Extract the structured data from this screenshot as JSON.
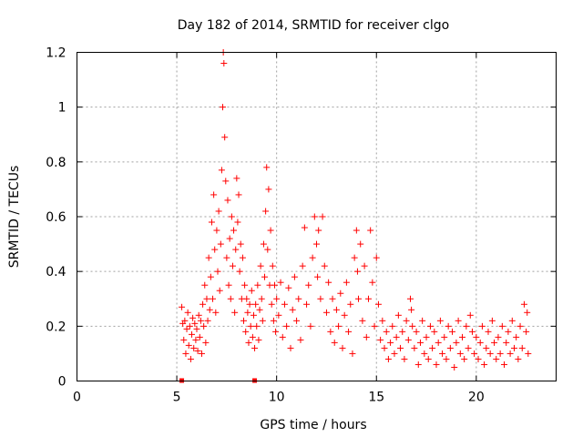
{
  "chart_data": {
    "type": "scatter",
    "title": "Day 182 of 2014, SRMTID for receiver clgo",
    "xlabel": "GPS time / hours",
    "ylabel": "SRMTID / TECUs",
    "xlim": [
      0,
      24
    ],
    "ylim": [
      0,
      1.2
    ],
    "x_ticks": [
      0,
      5,
      10,
      15,
      20
    ],
    "x_tick_labels": [
      "0",
      "5",
      "10",
      "15",
      "20"
    ],
    "y_ticks": [
      0,
      0.2,
      0.4,
      0.6,
      0.8,
      1.0,
      1.2
    ],
    "y_tick_labels": [
      "0",
      "0.2",
      "0.4",
      "0.6",
      "0.8",
      "1",
      "1.2"
    ],
    "grid": true,
    "marker": "+",
    "marker_color": "#ff0000",
    "series": [
      {
        "name": "SRMTID",
        "points": [
          [
            5.25,
            0.27
          ],
          [
            5.3,
            0.21
          ],
          [
            5.35,
            0.15
          ],
          [
            5.4,
            0.22
          ],
          [
            5.45,
            0.1
          ],
          [
            5.5,
            0.19
          ],
          [
            5.55,
            0.25
          ],
          [
            5.6,
            0.13
          ],
          [
            5.65,
            0.2
          ],
          [
            5.7,
            0.08
          ],
          [
            5.75,
            0.17
          ],
          [
            5.8,
            0.23
          ],
          [
            5.85,
            0.12
          ],
          [
            5.9,
            0.21
          ],
          [
            5.95,
            0.15
          ],
          [
            6.0,
            0.19
          ],
          [
            6.05,
            0.11
          ],
          [
            6.1,
            0.24
          ],
          [
            6.15,
            0.16
          ],
          [
            6.2,
            0.22
          ],
          [
            6.25,
            0.1
          ],
          [
            6.3,
            0.28
          ],
          [
            6.35,
            0.2
          ],
          [
            6.4,
            0.35
          ],
          [
            6.45,
            0.14
          ],
          [
            6.5,
            0.3
          ],
          [
            6.55,
            0.22
          ],
          [
            6.6,
            0.45
          ],
          [
            6.65,
            0.26
          ],
          [
            6.7,
            0.38
          ],
          [
            6.75,
            0.58
          ],
          [
            6.8,
            0.3
          ],
          [
            6.85,
            0.68
          ],
          [
            6.9,
            0.48
          ],
          [
            6.95,
            0.25
          ],
          [
            7.0,
            0.55
          ],
          [
            7.05,
            0.4
          ],
          [
            7.1,
            0.62
          ],
          [
            7.15,
            0.33
          ],
          [
            7.2,
            0.5
          ],
          [
            7.25,
            0.77
          ],
          [
            7.3,
            1.0
          ],
          [
            7.33,
            1.2
          ],
          [
            7.36,
            1.16
          ],
          [
            7.4,
            0.89
          ],
          [
            7.45,
            0.73
          ],
          [
            7.5,
            0.45
          ],
          [
            7.55,
            0.66
          ],
          [
            7.6,
            0.35
          ],
          [
            7.65,
            0.52
          ],
          [
            7.7,
            0.3
          ],
          [
            7.75,
            0.6
          ],
          [
            7.8,
            0.42
          ],
          [
            7.85,
            0.55
          ],
          [
            7.9,
            0.25
          ],
          [
            7.95,
            0.48
          ],
          [
            8.0,
            0.74
          ],
          [
            8.05,
            0.58
          ],
          [
            8.1,
            0.68
          ],
          [
            8.15,
            0.4
          ],
          [
            8.2,
            0.5
          ],
          [
            8.25,
            0.3
          ],
          [
            8.3,
            0.45
          ],
          [
            8.35,
            0.22
          ],
          [
            8.4,
            0.35
          ],
          [
            8.45,
            0.18
          ],
          [
            8.5,
            0.3
          ],
          [
            8.55,
            0.25
          ],
          [
            8.6,
            0.14
          ],
          [
            8.65,
            0.28
          ],
          [
            8.7,
            0.2
          ],
          [
            8.75,
            0.33
          ],
          [
            8.8,
            0.16
          ],
          [
            8.85,
            0.24
          ],
          [
            8.9,
            0.12
          ],
          [
            8.95,
            0.28
          ],
          [
            9.0,
            0.2
          ],
          [
            9.05,
            0.35
          ],
          [
            9.1,
            0.15
          ],
          [
            9.15,
            0.26
          ],
          [
            9.2,
            0.42
          ],
          [
            9.25,
            0.3
          ],
          [
            9.3,
            0.22
          ],
          [
            9.35,
            0.5
          ],
          [
            9.4,
            0.38
          ],
          [
            9.45,
            0.62
          ],
          [
            9.5,
            0.78
          ],
          [
            9.55,
            0.48
          ],
          [
            9.6,
            0.7
          ],
          [
            9.65,
            0.35
          ],
          [
            9.7,
            0.55
          ],
          [
            9.75,
            0.28
          ],
          [
            9.8,
            0.42
          ],
          [
            9.85,
            0.22
          ],
          [
            9.9,
            0.35
          ],
          [
            9.95,
            0.18
          ],
          [
            10.0,
            0.3
          ],
          [
            10.1,
            0.24
          ],
          [
            10.2,
            0.36
          ],
          [
            10.3,
            0.16
          ],
          [
            10.4,
            0.28
          ],
          [
            10.5,
            0.2
          ],
          [
            10.6,
            0.34
          ],
          [
            10.7,
            0.12
          ],
          [
            10.8,
            0.26
          ],
          [
            10.9,
            0.38
          ],
          [
            11.0,
            0.22
          ],
          [
            11.1,
            0.3
          ],
          [
            11.2,
            0.15
          ],
          [
            11.3,
            0.42
          ],
          [
            11.4,
            0.56
          ],
          [
            11.5,
            0.28
          ],
          [
            11.6,
            0.35
          ],
          [
            11.7,
            0.2
          ],
          [
            11.8,
            0.45
          ],
          [
            11.9,
            0.6
          ],
          [
            12.0,
            0.5
          ],
          [
            12.05,
            0.38
          ],
          [
            12.1,
            0.55
          ],
          [
            12.2,
            0.3
          ],
          [
            12.3,
            0.6
          ],
          [
            12.4,
            0.42
          ],
          [
            12.5,
            0.25
          ],
          [
            12.6,
            0.36
          ],
          [
            12.7,
            0.18
          ],
          [
            12.8,
            0.3
          ],
          [
            12.9,
            0.14
          ],
          [
            13.0,
            0.26
          ],
          [
            13.1,
            0.2
          ],
          [
            13.2,
            0.32
          ],
          [
            13.3,
            0.12
          ],
          [
            13.4,
            0.24
          ],
          [
            13.5,
            0.36
          ],
          [
            13.6,
            0.18
          ],
          [
            13.7,
            0.28
          ],
          [
            13.8,
            0.1
          ],
          [
            13.9,
            0.45
          ],
          [
            14.0,
            0.55
          ],
          [
            14.05,
            0.4
          ],
          [
            14.1,
            0.3
          ],
          [
            14.2,
            0.5
          ],
          [
            14.3,
            0.22
          ],
          [
            14.4,
            0.42
          ],
          [
            14.5,
            0.16
          ],
          [
            14.6,
            0.3
          ],
          [
            14.7,
            0.55
          ],
          [
            14.8,
            0.36
          ],
          [
            14.9,
            0.2
          ],
          [
            15.0,
            0.45
          ],
          [
            15.1,
            0.28
          ],
          [
            15.2,
            0.15
          ],
          [
            15.3,
            0.22
          ],
          [
            15.4,
            0.12
          ],
          [
            15.5,
            0.18
          ],
          [
            15.6,
            0.08
          ],
          [
            15.7,
            0.14
          ],
          [
            15.8,
            0.2
          ],
          [
            15.9,
            0.1
          ],
          [
            16.0,
            0.16
          ],
          [
            16.1,
            0.24
          ],
          [
            16.2,
            0.12
          ],
          [
            16.3,
            0.18
          ],
          [
            16.4,
            0.08
          ],
          [
            16.5,
            0.22
          ],
          [
            16.6,
            0.15
          ],
          [
            16.7,
            0.3
          ],
          [
            16.75,
            0.26
          ],
          [
            16.8,
            0.2
          ],
          [
            16.9,
            0.12
          ],
          [
            17.0,
            0.18
          ],
          [
            17.1,
            0.06
          ],
          [
            17.2,
            0.14
          ],
          [
            17.3,
            0.22
          ],
          [
            17.4,
            0.1
          ],
          [
            17.5,
            0.16
          ],
          [
            17.6,
            0.08
          ],
          [
            17.7,
            0.2
          ],
          [
            17.8,
            0.12
          ],
          [
            17.9,
            0.18
          ],
          [
            18.0,
            0.06
          ],
          [
            18.1,
            0.14
          ],
          [
            18.2,
            0.22
          ],
          [
            18.3,
            0.1
          ],
          [
            18.4,
            0.16
          ],
          [
            18.5,
            0.08
          ],
          [
            18.6,
            0.2
          ],
          [
            18.7,
            0.12
          ],
          [
            18.8,
            0.18
          ],
          [
            18.9,
            0.05
          ],
          [
            19.0,
            0.14
          ],
          [
            19.1,
            0.22
          ],
          [
            19.2,
            0.1
          ],
          [
            19.3,
            0.16
          ],
          [
            19.4,
            0.08
          ],
          [
            19.5,
            0.2
          ],
          [
            19.6,
            0.12
          ],
          [
            19.7,
            0.24
          ],
          [
            19.8,
            0.18
          ],
          [
            19.9,
            0.1
          ],
          [
            20.0,
            0.16
          ],
          [
            20.1,
            0.08
          ],
          [
            20.2,
            0.14
          ],
          [
            20.3,
            0.2
          ],
          [
            20.4,
            0.06
          ],
          [
            20.5,
            0.12
          ],
          [
            20.6,
            0.18
          ],
          [
            20.7,
            0.1
          ],
          [
            20.8,
            0.22
          ],
          [
            20.9,
            0.14
          ],
          [
            21.0,
            0.08
          ],
          [
            21.1,
            0.16
          ],
          [
            21.2,
            0.1
          ],
          [
            21.3,
            0.2
          ],
          [
            21.4,
            0.06
          ],
          [
            21.5,
            0.14
          ],
          [
            21.6,
            0.18
          ],
          [
            21.7,
            0.1
          ],
          [
            21.8,
            0.22
          ],
          [
            21.9,
            0.12
          ],
          [
            22.0,
            0.16
          ],
          [
            22.1,
            0.08
          ],
          [
            22.2,
            0.2
          ],
          [
            22.3,
            0.12
          ],
          [
            22.4,
            0.28
          ],
          [
            22.5,
            0.18
          ],
          [
            22.55,
            0.25
          ],
          [
            22.6,
            0.1
          ]
        ]
      }
    ],
    "gap_markers_x": [
      5.25,
      8.9
    ]
  }
}
